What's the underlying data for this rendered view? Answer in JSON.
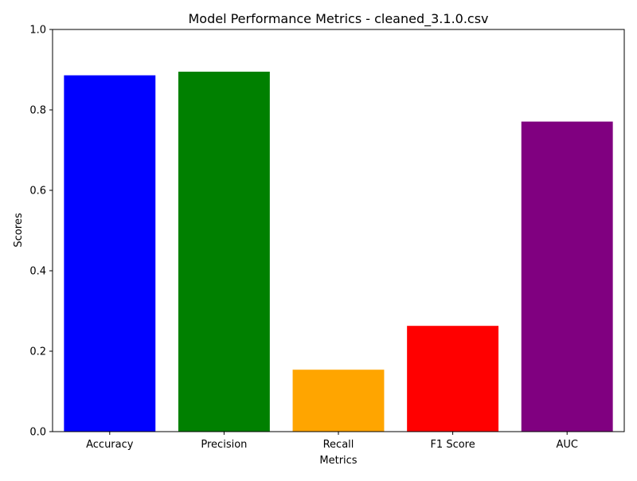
{
  "chart_data": {
    "type": "bar",
    "title": "Model Performance Metrics - cleaned_3.1.0.csv",
    "xlabel": "Metrics",
    "ylabel": "Scores",
    "categories": [
      "Accuracy",
      "Precision",
      "Recall",
      "F1 Score",
      "AUC"
    ],
    "values": [
      0.886,
      0.895,
      0.154,
      0.263,
      0.771
    ],
    "colors": [
      "#0000ff",
      "#008000",
      "#ffa500",
      "#ff0000",
      "#800080"
    ],
    "ylim": [
      0,
      1.0
    ],
    "yticks": [
      "0.0",
      "0.2",
      "0.4",
      "0.6",
      "0.8",
      "1.0"
    ],
    "grid": false,
    "legend": "none"
  }
}
